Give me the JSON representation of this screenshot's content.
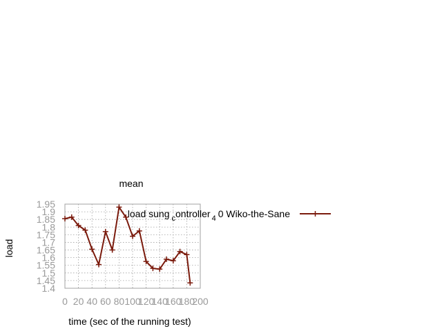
{
  "chart_data": {
    "type": "line",
    "title": "mean",
    "xlabel": "time (sec of the running test)",
    "ylabel": "load",
    "xlim": [
      0,
      200
    ],
    "ylim": [
      1.4,
      1.95
    ],
    "xticks": [
      0,
      20,
      40,
      60,
      80,
      100,
      120,
      140,
      160,
      180,
      200
    ],
    "yticks": [
      1.4,
      1.45,
      1.5,
      1.55,
      1.6,
      1.65,
      1.7,
      1.75,
      1.8,
      1.85,
      1.9,
      1.95
    ],
    "grid": true,
    "legend_position": "top-right",
    "series": [
      {
        "name": "load sung controller_4 0 Wiko-the-Sane",
        "legend_main": "load sung",
        "legend_sub": "c",
        "legend_rest": "ontroller",
        "legend_sub2": "4",
        "legend_tail": "0 Wiko-the-Sane",
        "color": "#7a1a0c",
        "x": [
          0,
          10,
          20,
          30,
          40,
          50,
          60,
          70,
          80,
          90,
          100,
          110,
          120,
          130,
          140,
          150,
          160,
          170,
          180,
          185
        ],
        "y": [
          1.855,
          1.865,
          1.81,
          1.78,
          1.655,
          1.555,
          1.77,
          1.65,
          1.93,
          1.865,
          1.74,
          1.775,
          1.575,
          1.53,
          1.525,
          1.59,
          1.58,
          1.64,
          1.62,
          1.435
        ]
      }
    ]
  }
}
